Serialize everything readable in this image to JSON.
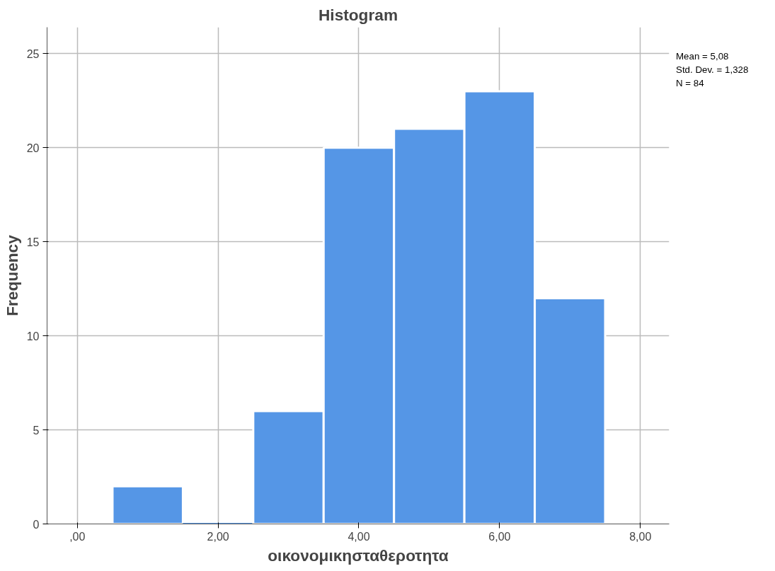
{
  "chart_data": {
    "type": "histogram",
    "title": "Histogram",
    "xlabel": "οικονομικησταθεροτητα",
    "ylabel": "Frequency",
    "bins": [
      0.5,
      1.5,
      2.5,
      3.5,
      4.5,
      5.5,
      6.5,
      7.5
    ],
    "values": [
      2,
      0,
      6,
      20,
      21,
      23,
      12
    ],
    "color": "#5596e6",
    "xlim": [
      -0.43,
      8.41
    ],
    "ylim": [
      0,
      26.4
    ],
    "xticks": [
      {
        "value": 0,
        "label": ",00"
      },
      {
        "value": 2,
        "label": "2,00"
      },
      {
        "value": 4,
        "label": "4,00"
      },
      {
        "value": 6,
        "label": "6,00"
      },
      {
        "value": 8,
        "label": "8,00"
      }
    ],
    "yticks": [
      0,
      5,
      10,
      15,
      20,
      25
    ],
    "grid": true,
    "annotations": [
      "Mean = 5,08",
      "Std. Dev. = 1,328",
      "N = 84"
    ]
  }
}
